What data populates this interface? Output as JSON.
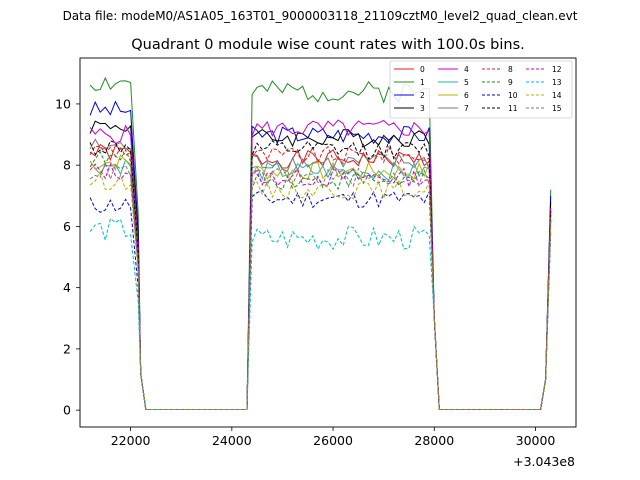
{
  "chart_data": {
    "type": "line",
    "suptitle": "Data file: modeM0/AS1A05_163T01_9000003118_21109cztM0_level2_quad_clean.evt",
    "title": "Quadrant 0 module wise count rates with 100.0s bins.",
    "xlabel": "",
    "ylabel": "",
    "x_offset_label": "+3.043e8",
    "xlim": [
      21000,
      30800
    ],
    "ylim": [
      -0.55,
      11.5
    ],
    "x_ticks": [
      22000,
      24000,
      26000,
      28000,
      30000
    ],
    "x_tick_labels": [
      "22000",
      "24000",
      "26000",
      "28000",
      "30000"
    ],
    "y_ticks": [
      0,
      2,
      4,
      6,
      8,
      10
    ],
    "y_tick_labels": [
      "0",
      "2",
      "4",
      "6",
      "8",
      "10"
    ],
    "grid": false,
    "legend_position": "top-right",
    "x_segments": [
      {
        "start": 21200,
        "end": 22000
      },
      {
        "start": 22100,
        "end": 22300
      },
      {
        "start": 22300,
        "end": 24300
      },
      {
        "start": 24300,
        "end": 27900
      },
      {
        "start": 27900,
        "end": 28100
      },
      {
        "start": 28100,
        "end": 30100
      },
      {
        "start": 30100,
        "end": 30300
      }
    ],
    "series": [
      {
        "name": "0",
        "color": "#e41a1c",
        "dashed": false,
        "level": 8.4,
        "high_level": 8.2,
        "amp": 0.3,
        "end": 6.5
      },
      {
        "name": "1",
        "color": "#228b22",
        "dashed": false,
        "level": 10.7,
        "high_level": 10.4,
        "amp": 0.35,
        "end": 7.2
      },
      {
        "name": "2",
        "color": "#0000ee",
        "dashed": false,
        "level": 9.8,
        "high_level": 9.0,
        "amp": 0.3,
        "end": 7.0
      },
      {
        "name": "3",
        "color": "#000000",
        "dashed": false,
        "level": 9.3,
        "high_level": 8.9,
        "amp": 0.3,
        "end": 6.8
      },
      {
        "name": "4",
        "color": "#cc00cc",
        "dashed": false,
        "level": 9.0,
        "high_level": 9.2,
        "amp": 0.3,
        "end": 6.6
      },
      {
        "name": "5",
        "color": "#20b2aa",
        "dashed": false,
        "level": 8.0,
        "high_level": 7.8,
        "amp": 0.3,
        "end": 6.2
      },
      {
        "name": "6",
        "color": "#b8b000",
        "dashed": false,
        "level": 8.1,
        "high_level": 7.8,
        "amp": 0.3,
        "end": 6.3
      },
      {
        "name": "7",
        "color": "#777777",
        "dashed": false,
        "level": 8.6,
        "high_level": 8.1,
        "amp": 0.3,
        "end": 6.4
      },
      {
        "name": "8",
        "color": "#e41a1c",
        "dashed": true,
        "level": 8.5,
        "high_level": 8.3,
        "amp": 0.3,
        "end": 6.5
      },
      {
        "name": "9",
        "color": "#228b22",
        "dashed": true,
        "level": 8.2,
        "high_level": 7.5,
        "amp": 0.3,
        "end": 6.2
      },
      {
        "name": "10",
        "color": "#0000ee",
        "dashed": true,
        "level": 6.7,
        "high_level": 6.9,
        "amp": 0.3,
        "end": 5.8
      },
      {
        "name": "11",
        "color": "#000000",
        "dashed": true,
        "level": 8.6,
        "high_level": 8.5,
        "amp": 0.3,
        "end": 6.5
      },
      {
        "name": "12",
        "color": "#cc00cc",
        "dashed": true,
        "level": 7.8,
        "high_level": 7.6,
        "amp": 0.3,
        "end": 6.2
      },
      {
        "name": "13",
        "color": "#00bfbf",
        "dashed": true,
        "level": 5.9,
        "high_level": 5.6,
        "amp": 0.4,
        "end": 6.0
      },
      {
        "name": "14",
        "color": "#b8b000",
        "dashed": true,
        "level": 7.5,
        "high_level": 7.2,
        "amp": 0.3,
        "end": 6.0
      },
      {
        "name": "15",
        "color": "#777777",
        "dashed": true,
        "level": 7.8,
        "high_level": 7.6,
        "amp": 0.3,
        "end": 6.3
      }
    ]
  }
}
